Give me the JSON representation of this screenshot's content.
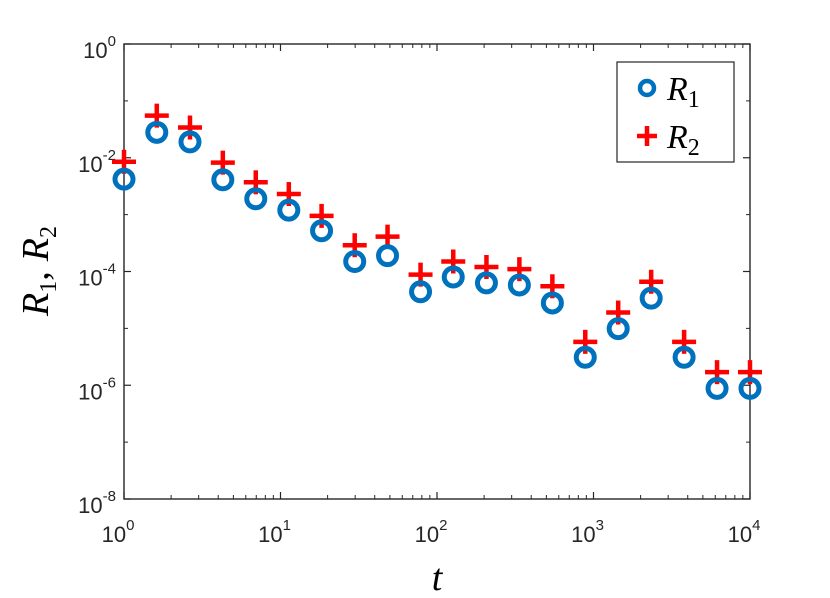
{
  "chart_data": {
    "type": "scatter",
    "xscale": "log",
    "yscale": "log",
    "xlim": [
      1,
      10000
    ],
    "ylim": [
      1e-08,
      1
    ],
    "xlabel": "t",
    "ylabel": {
      "r1_base": "R",
      "r1_sub": "1",
      "sep": ",",
      "r2_base": "R",
      "r2_sub": "2"
    },
    "xticks": [
      {
        "base": "10",
        "exp": "0",
        "value": 1
      },
      {
        "base": "10",
        "exp": "1",
        "value": 10
      },
      {
        "base": "10",
        "exp": "2",
        "value": 100
      },
      {
        "base": "10",
        "exp": "3",
        "value": 1000
      },
      {
        "base": "10",
        "exp": "4",
        "value": 10000
      }
    ],
    "yticks": [
      {
        "base": "10",
        "exp": "0",
        "value": 1
      },
      {
        "base": "10",
        "exp": "-2",
        "value": 0.01
      },
      {
        "base": "10",
        "exp": "-4",
        "value": 0.0001
      },
      {
        "base": "10",
        "exp": "-6",
        "value": 1e-06
      },
      {
        "base": "10",
        "exp": "-8",
        "value": 1e-08
      }
    ],
    "legend_position": "top-right",
    "series": [
      {
        "key": "r1",
        "name_base": "R",
        "name_sub": "1",
        "marker": "circle",
        "color": "#0072BD",
        "x": [
          1,
          1.62,
          2.64,
          4.28,
          6.95,
          11.3,
          18.3,
          29.8,
          48.3,
          78.5,
          127,
          207,
          336,
          546,
          886,
          1438,
          2336,
          3793,
          6158,
          10000
        ],
        "y": [
          0.0042,
          0.028,
          0.019,
          0.0041,
          0.0019,
          0.0012,
          0.00052,
          0.00015,
          0.00019,
          4.4e-05,
          8e-05,
          6.3e-05,
          5.8e-05,
          2.8e-05,
          3.1e-06,
          9.9e-06,
          3.4e-05,
          3.1e-06,
          8.8e-07,
          8.8e-07
        ]
      },
      {
        "key": "r2",
        "name_base": "R",
        "name_sub": "2",
        "marker": "plus",
        "color": "#FF0000",
        "x": [
          1,
          1.62,
          2.64,
          4.28,
          6.95,
          11.3,
          18.3,
          29.8,
          48.3,
          78.5,
          127,
          207,
          336,
          546,
          886,
          1438,
          2336,
          3793,
          6158,
          10000
        ],
        "y": [
          0.0085,
          0.055,
          0.034,
          0.0082,
          0.0037,
          0.0023,
          0.00095,
          0.00029,
          0.00041,
          8.8e-05,
          0.00015,
          0.00012,
          0.00011,
          5.5e-05,
          5.8e-06,
          1.9e-05,
          6.6e-05,
          5.8e-06,
          1.7e-06,
          1.7e-06
        ]
      }
    ]
  }
}
